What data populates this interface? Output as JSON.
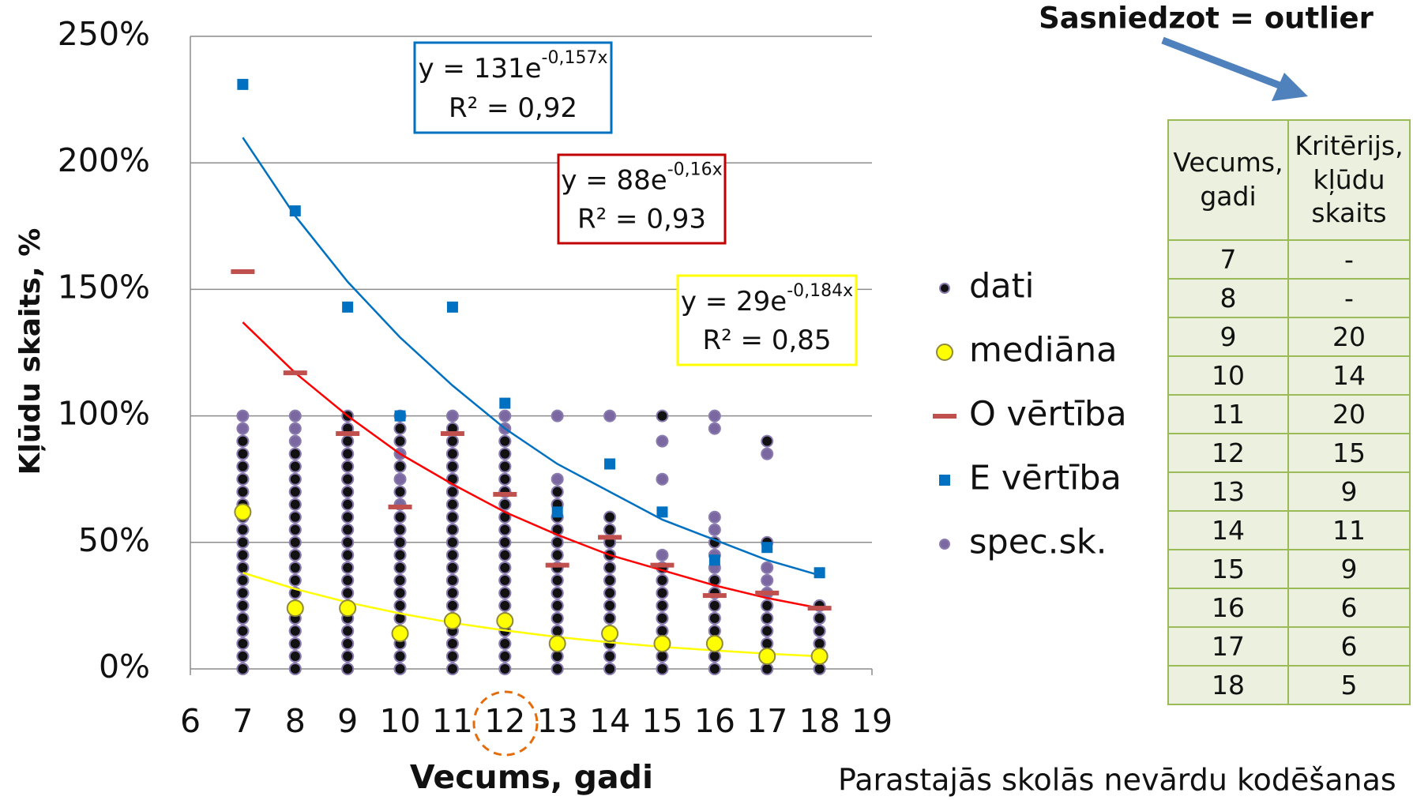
{
  "chart_data": {
    "type": "scatter",
    "x_label": "Vecums, gadi",
    "y_label": "Kļūdu skaits, %",
    "xlim": [
      6,
      19
    ],
    "xticks": [
      6,
      7,
      8,
      9,
      10,
      11,
      12,
      13,
      14,
      15,
      16,
      17,
      18,
      19
    ],
    "ylim": [
      0,
      250
    ],
    "yticks": [
      {
        "value": 0,
        "label": "0%"
      },
      {
        "value": 50,
        "label": "50%"
      },
      {
        "value": 100,
        "label": "100%"
      },
      {
        "value": 150,
        "label": "150%"
      },
      {
        "value": 200,
        "label": "200%"
      },
      {
        "value": 250,
        "label": "250%"
      }
    ],
    "grid": true,
    "series": [
      {
        "name": "spec.sk.",
        "color": "#7b68a0",
        "marker": "circle",
        "groups": [
          {
            "x": 7,
            "values": [
              0,
              5,
              10,
              15,
              20,
              25,
              30,
              35,
              40,
              45,
              50,
              55,
              60,
              65,
              70,
              75,
              80,
              85,
              90,
              95,
              100
            ]
          },
          {
            "x": 8,
            "values": [
              0,
              5,
              10,
              15,
              20,
              25,
              30,
              35,
              40,
              45,
              50,
              55,
              60,
              65,
              70,
              75,
              80,
              85,
              90,
              95,
              100
            ]
          },
          {
            "x": 9,
            "values": [
              0,
              5,
              10,
              15,
              20,
              25,
              30,
              35,
              40,
              45,
              50,
              55,
              60,
              65,
              70,
              75,
              80,
              85,
              90,
              95
            ]
          },
          {
            "x": 10,
            "values": [
              0,
              5,
              10,
              15,
              20,
              25,
              30,
              35,
              40,
              45,
              50,
              55,
              60,
              65,
              70,
              75,
              80,
              85,
              90,
              95,
              100
            ]
          },
          {
            "x": 11,
            "values": [
              0,
              5,
              10,
              15,
              20,
              25,
              30,
              35,
              40,
              45,
              50,
              55,
              60,
              65,
              70,
              75,
              80,
              85,
              90,
              95,
              100
            ]
          },
          {
            "x": 12,
            "values": [
              0,
              5,
              10,
              15,
              20,
              25,
              30,
              35,
              40,
              45,
              50,
              55,
              60,
              65,
              70,
              75,
              80,
              85,
              90,
              95,
              100
            ]
          },
          {
            "x": 13,
            "values": [
              0,
              5,
              10,
              15,
              20,
              25,
              30,
              35,
              40,
              45,
              50,
              55,
              60,
              65,
              70,
              75,
              100
            ]
          },
          {
            "x": 14,
            "values": [
              0,
              5,
              10,
              15,
              20,
              25,
              30,
              35,
              40,
              45,
              50,
              55,
              60,
              100
            ]
          },
          {
            "x": 15,
            "values": [
              0,
              5,
              10,
              15,
              20,
              25,
              30,
              35,
              40,
              45,
              75,
              90
            ]
          },
          {
            "x": 16,
            "values": [
              0,
              5,
              10,
              15,
              20,
              25,
              30,
              35,
              40,
              45,
              50,
              55,
              60,
              95,
              100
            ]
          },
          {
            "x": 17,
            "values": [
              0,
              5,
              10,
              15,
              20,
              25,
              30,
              35,
              40,
              85
            ]
          },
          {
            "x": 18,
            "values": [
              0,
              5,
              10,
              15,
              20,
              25
            ]
          }
        ]
      },
      {
        "name": "dati",
        "color": "#111111",
        "marker": "circle",
        "groups": [
          {
            "x": 7,
            "values": [
              0,
              5,
              10,
              15,
              20,
              25,
              30,
              35,
              40,
              45,
              50,
              55,
              60,
              65,
              70,
              75,
              80,
              85,
              90
            ]
          },
          {
            "x": 8,
            "values": [
              0,
              5,
              10,
              15,
              20,
              25,
              30,
              35,
              40,
              45,
              50,
              55,
              60,
              65,
              70,
              75,
              80,
              85
            ]
          },
          {
            "x": 9,
            "values": [
              0,
              5,
              10,
              15,
              20,
              25,
              30,
              35,
              40,
              45,
              50,
              55,
              60,
              65,
              70,
              75,
              80,
              85,
              90,
              95,
              100
            ]
          },
          {
            "x": 10,
            "values": [
              0,
              5,
              10,
              15,
              20,
              25,
              30,
              35,
              40,
              45,
              50,
              55,
              60,
              70,
              80,
              90,
              95
            ]
          },
          {
            "x": 11,
            "values": [
              0,
              5,
              10,
              15,
              20,
              25,
              30,
              35,
              40,
              45,
              50,
              55,
              60,
              65,
              70,
              75,
              80,
              85,
              90,
              95
            ]
          },
          {
            "x": 12,
            "values": [
              0,
              5,
              10,
              15,
              20,
              25,
              30,
              35,
              40,
              45,
              50,
              55,
              60,
              65,
              70,
              75,
              80,
              85,
              90
            ]
          },
          {
            "x": 13,
            "values": [
              0,
              5,
              10,
              15,
              20,
              25,
              30,
              35,
              40,
              45,
              50,
              55,
              60,
              65,
              70
            ]
          },
          {
            "x": 14,
            "values": [
              0,
              5,
              10,
              15,
              20,
              25,
              30,
              35,
              40,
              45,
              50,
              55,
              60
            ]
          },
          {
            "x": 15,
            "values": [
              0,
              5,
              10,
              15,
              20,
              25,
              30,
              35,
              40,
              100
            ]
          },
          {
            "x": 16,
            "values": [
              0,
              5,
              10,
              15,
              20,
              25,
              30,
              35,
              50
            ]
          },
          {
            "x": 17,
            "values": [
              0,
              5,
              10,
              15,
              20,
              25,
              50,
              90
            ]
          },
          {
            "x": 18,
            "values": [
              0,
              5,
              10,
              15,
              20,
              25
            ]
          }
        ]
      },
      {
        "name": "O vērtība",
        "color": "#c0504d",
        "marker": "dash",
        "x": [
          7,
          8,
          9,
          10,
          11,
          12,
          13,
          14,
          15,
          16,
          17,
          18
        ],
        "values": [
          157,
          117,
          93,
          64,
          93,
          69,
          41,
          52,
          41,
          29,
          30,
          24
        ]
      },
      {
        "name": "E vērtība",
        "color": "#0070c0",
        "marker": "square",
        "x": [
          7,
          8,
          9,
          10,
          11,
          12,
          13,
          14,
          15,
          16,
          17,
          18
        ],
        "values": [
          231,
          181,
          143,
          100,
          143,
          105,
          62,
          81,
          62,
          43,
          48,
          38
        ]
      },
      {
        "name": "mediāna",
        "color": "#ffff00",
        "marker": "dot",
        "x": [
          7,
          8,
          9,
          10,
          11,
          12,
          13,
          14,
          15,
          16,
          17,
          18
        ],
        "values": [
          62,
          24,
          24,
          14,
          19,
          19,
          10,
          14,
          10,
          10,
          5,
          5
        ]
      }
    ],
    "legend_order": [
      1,
      4,
      2,
      3,
      0
    ],
    "trendlines": [
      {
        "color": "#0070c0",
        "equation": "y = 131e",
        "exponent": "-0,157x",
        "r2": "R² = 0,92",
        "x": [
          7,
          8,
          9,
          10,
          11,
          12,
          13,
          14,
          15,
          16,
          17,
          18
        ],
        "values": [
          210,
          179,
          153,
          131,
          112,
          95,
          81,
          70,
          59,
          51,
          43,
          37
        ]
      },
      {
        "color": "#ff0000",
        "border": "#c00000",
        "equation": "y = 88e",
        "exponent": "-0,16x",
        "r2": "R² = 0,93",
        "x": [
          7,
          8,
          9,
          10,
          11,
          12,
          13,
          14,
          15,
          16,
          17,
          18
        ],
        "values": [
          137,
          117,
          100,
          85,
          73,
          62,
          53,
          45,
          39,
          33,
          28,
          24
        ]
      },
      {
        "color": "#ffff00",
        "equation": "y = 29e",
        "exponent": "-0,184x",
        "r2": "R² = 0,85",
        "x": [
          7,
          8,
          9,
          10,
          11,
          12,
          13,
          14,
          15,
          16,
          17,
          18
        ],
        "values": [
          38,
          31.6,
          26.3,
          21.9,
          18.2,
          15.2,
          12.6,
          10.5,
          8.7,
          7.3,
          6,
          5
        ]
      }
    ]
  },
  "note": "Sasniedzot = outlier",
  "footer": "Parastajās skolās nevārdu kodēšanas",
  "table": {
    "header": [
      "Vecums, gadi",
      "Kritērijs, kļūdu skaits"
    ],
    "rows": [
      [
        "7",
        "-"
      ],
      [
        "8",
        "-"
      ],
      [
        "9",
        "20"
      ],
      [
        "10",
        "14"
      ],
      [
        "11",
        "20"
      ],
      [
        "12",
        "15"
      ],
      [
        "13",
        "9"
      ],
      [
        "14",
        "11"
      ],
      [
        "15",
        "9"
      ],
      [
        "16",
        "6"
      ],
      [
        "17",
        "6"
      ],
      [
        "18",
        "5"
      ]
    ]
  }
}
